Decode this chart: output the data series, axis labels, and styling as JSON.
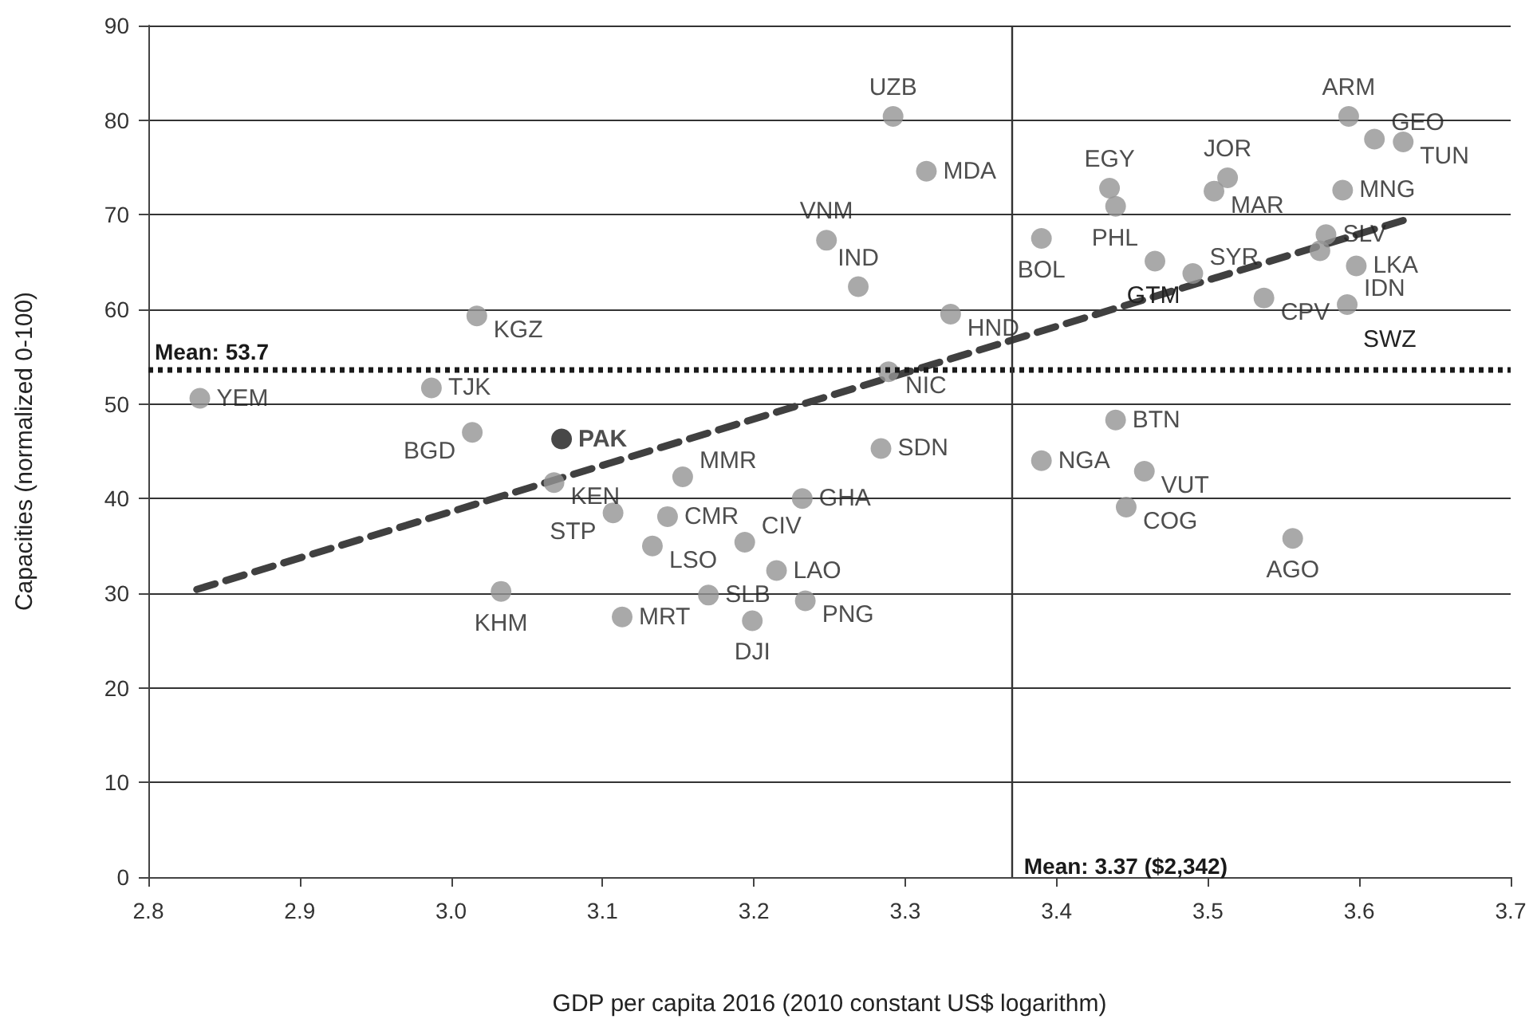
{
  "chart_data": {
    "type": "scatter",
    "xlabel": "GDP per capita 2016 (2010 constant US$ logarithm)",
    "ylabel": "Capacities (normalized 0-100)",
    "xlim": [
      2.8,
      3.7
    ],
    "xticks": [
      2.8,
      2.9,
      {
        "value": 3,
        "label": "3.0"
      },
      3.1,
      3.2,
      3.3,
      3.4,
      3.5,
      3.6,
      3.7
    ],
    "ylim": [
      0,
      90
    ],
    "yticks": [
      0,
      10,
      20,
      30,
      40,
      50,
      60,
      70,
      80,
      90
    ],
    "grid": "y",
    "marker": "circle",
    "series": [
      {
        "color": "#939393",
        "x": [
          2.834,
          3.017,
          2.987,
          3.014,
          3.068,
          3.033,
          3.107,
          3.113,
          3.153,
          3.143,
          3.133,
          3.194,
          3.232,
          3.215,
          3.17,
          3.234,
          3.199,
          3.284,
          3.289,
          3.33,
          3.269,
          3.248,
          3.314,
          3.292,
          3.39,
          3.39,
          3.439,
          3.458,
          3.446,
          3.556,
          3.435,
          3.439,
          3.465,
          3.49,
          3.504,
          3.513,
          3.537,
          3.589,
          3.578,
          3.574,
          3.598,
          3.592,
          3.593,
          3.61,
          3.629
        ],
        "values": [
          50.6,
          59.3,
          51.7,
          47.0,
          41.7,
          30.2,
          38.5,
          27.5,
          42.3,
          38.1,
          35.0,
          35.4,
          40.0,
          32.4,
          29.8,
          29.2,
          27.1,
          45.3,
          53.4,
          59.5,
          62.4,
          67.3,
          74.6,
          80.4,
          67.5,
          44.0,
          48.3,
          42.9,
          39.1,
          35.8,
          72.8,
          70.9,
          65.1,
          63.8,
          72.5,
          73.9,
          61.2,
          72.6,
          67.9,
          66.2,
          64.6,
          60.5,
          80.4,
          78.0,
          77.7
        ],
        "value_labels": [
          "YEM",
          "KGZ",
          "TJK",
          "BGD",
          "KEN",
          "KHM",
          "STP",
          "MRT",
          "MMR",
          "CMR",
          "LSO",
          "CIV",
          "GHA",
          "LAO",
          "SLB",
          "PNG",
          "DJI",
          "SDN",
          "NIC",
          "HND",
          "IND",
          "VNM",
          "MDA",
          "UZB",
          "BOL",
          "NGA",
          "BTN",
          "VUT",
          "COG",
          "AGO",
          "EGY",
          null,
          "PHL",
          "SYR",
          "MAR",
          "JOR",
          "CPV",
          "MNG",
          "SLV",
          null,
          "LKA",
          "IDN",
          "ARM",
          "GEO",
          "TUN"
        ]
      },
      {
        "color": "#1a1a1a",
        "x": [
          3.073
        ],
        "values": [
          46.3
        ],
        "value_labels": [
          "PAK"
        ]
      },
      {
        "type": "line",
        "color": "#404040",
        "line_style": "dashed",
        "marker": "none",
        "x": [
          2.832,
          3.629
        ],
        "values": [
          30.4,
          69.4
        ]
      }
    ],
    "ref_lines": [
      {
        "axis": "y",
        "value": 53.7,
        "label": "Mean: 53.7",
        "color": "#1a1a1a",
        "line_style": "dotted"
      },
      {
        "axis": "x",
        "value": 3.37,
        "label": "Mean: 3.37 ($2,342)",
        "color": "#333333",
        "line_style": "solid"
      }
    ],
    "annotations": [
      {
        "text": "GTM",
        "x": 3.49,
        "y": 63.8
      },
      {
        "text": "SWZ",
        "x": 3.592,
        "y": 60.5
      }
    ]
  }
}
